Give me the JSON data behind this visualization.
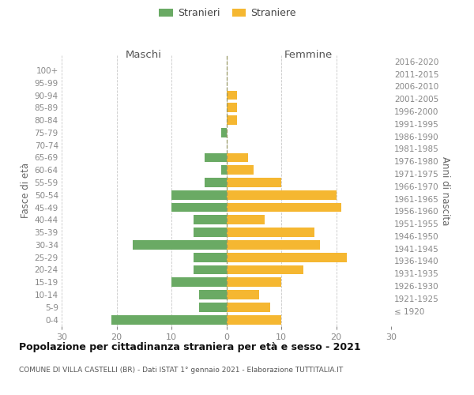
{
  "age_groups": [
    "100+",
    "95-99",
    "90-94",
    "85-89",
    "80-84",
    "75-79",
    "70-74",
    "65-69",
    "60-64",
    "55-59",
    "50-54",
    "45-49",
    "40-44",
    "35-39",
    "30-34",
    "25-29",
    "20-24",
    "15-19",
    "10-14",
    "5-9",
    "0-4"
  ],
  "birth_years": [
    "≤ 1920",
    "1921-1925",
    "1926-1930",
    "1931-1935",
    "1936-1940",
    "1941-1945",
    "1946-1950",
    "1951-1955",
    "1956-1960",
    "1961-1965",
    "1966-1970",
    "1971-1975",
    "1976-1980",
    "1981-1985",
    "1986-1990",
    "1991-1995",
    "1996-2000",
    "2001-2005",
    "2006-2010",
    "2011-2015",
    "2016-2020"
  ],
  "maschi": [
    0,
    0,
    0,
    0,
    0,
    1,
    0,
    4,
    1,
    4,
    10,
    10,
    6,
    6,
    17,
    6,
    6,
    10,
    5,
    5,
    21
  ],
  "femmine": [
    0,
    0,
    2,
    2,
    2,
    0,
    0,
    4,
    5,
    10,
    20,
    21,
    7,
    16,
    17,
    22,
    14,
    10,
    6,
    8,
    10
  ],
  "maschi_color": "#6aaa64",
  "femmine_color": "#f5b731",
  "background_color": "#ffffff",
  "grid_color": "#c8c8c8",
  "center_line_color": "#999966",
  "title": "Popolazione per cittadinanza straniera per età e sesso - 2021",
  "subtitle": "COMUNE DI VILLA CASTELLI (BR) - Dati ISTAT 1° gennaio 2021 - Elaborazione TUTTITALIA.IT",
  "ylabel_left": "Fasce di età",
  "ylabel_right": "Anni di nascita",
  "xlabel_left": "Maschi",
  "xlabel_right": "Femmine",
  "legend_stranieri": "Stranieri",
  "legend_straniere": "Straniere",
  "xlim": 30,
  "bar_height": 0.75,
  "tick_color": "#888888",
  "label_color": "#666666"
}
